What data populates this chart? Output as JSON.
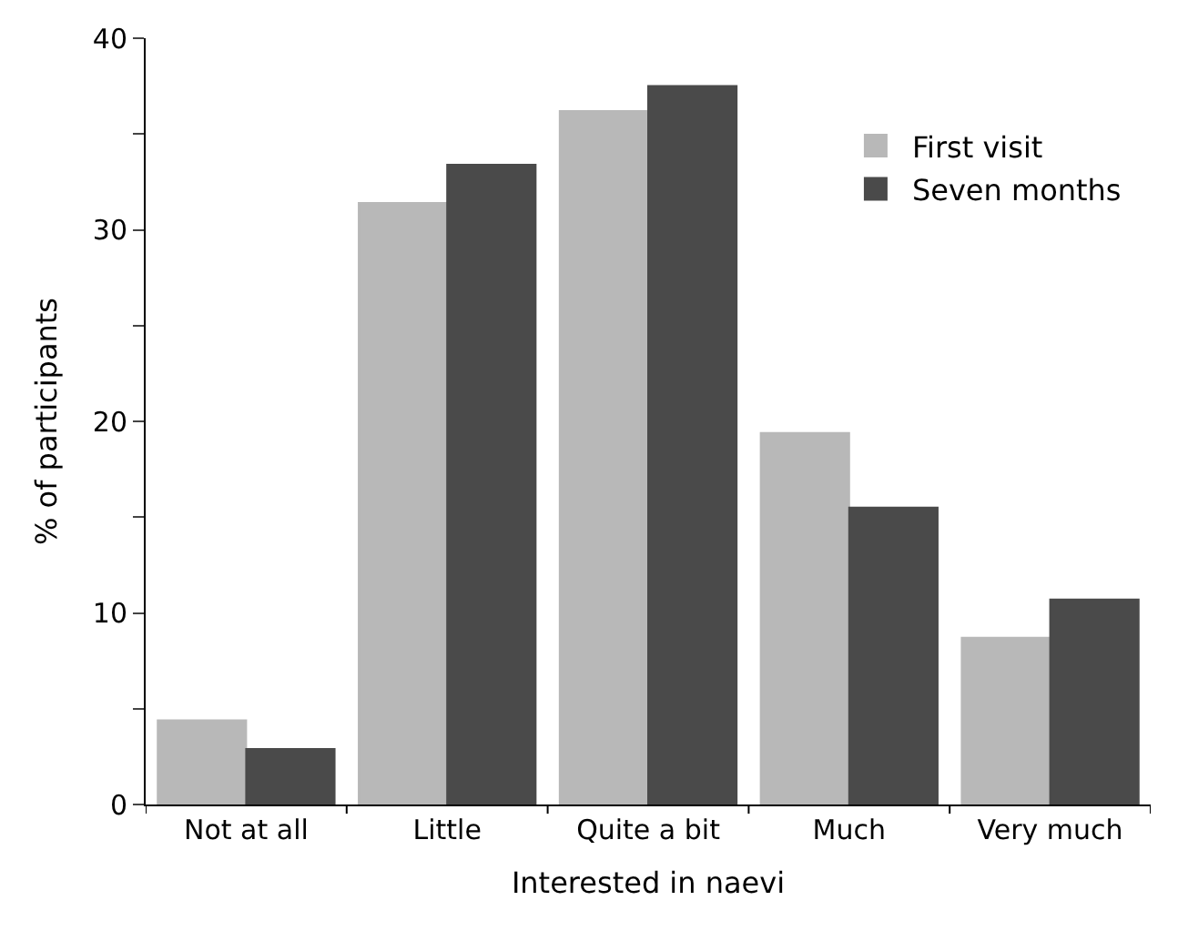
{
  "chart_data": {
    "type": "bar",
    "xlabel": "Interested in naevi",
    "ylabel": "% of participants",
    "categories": [
      "Not at all",
      "Little",
      "Quite a bit",
      "Much",
      "Very much"
    ],
    "series": [
      {
        "name": "First visit",
        "color": "#b8b8b8",
        "values": [
          4.4,
          31.4,
          36.2,
          19.4,
          8.7
        ]
      },
      {
        "name": "Seven months",
        "color": "#4a4a4a",
        "values": [
          2.9,
          33.4,
          37.5,
          15.5,
          10.7
        ]
      }
    ],
    "ylim": [
      0,
      40
    ],
    "yticks": [
      0,
      {
        "value": 5,
        "label": null
      },
      10,
      {
        "value": 15,
        "label": null
      },
      20,
      {
        "value": 25,
        "label": null
      },
      30,
      {
        "value": 35,
        "label": null
      },
      40
    ],
    "legend": "top right"
  }
}
